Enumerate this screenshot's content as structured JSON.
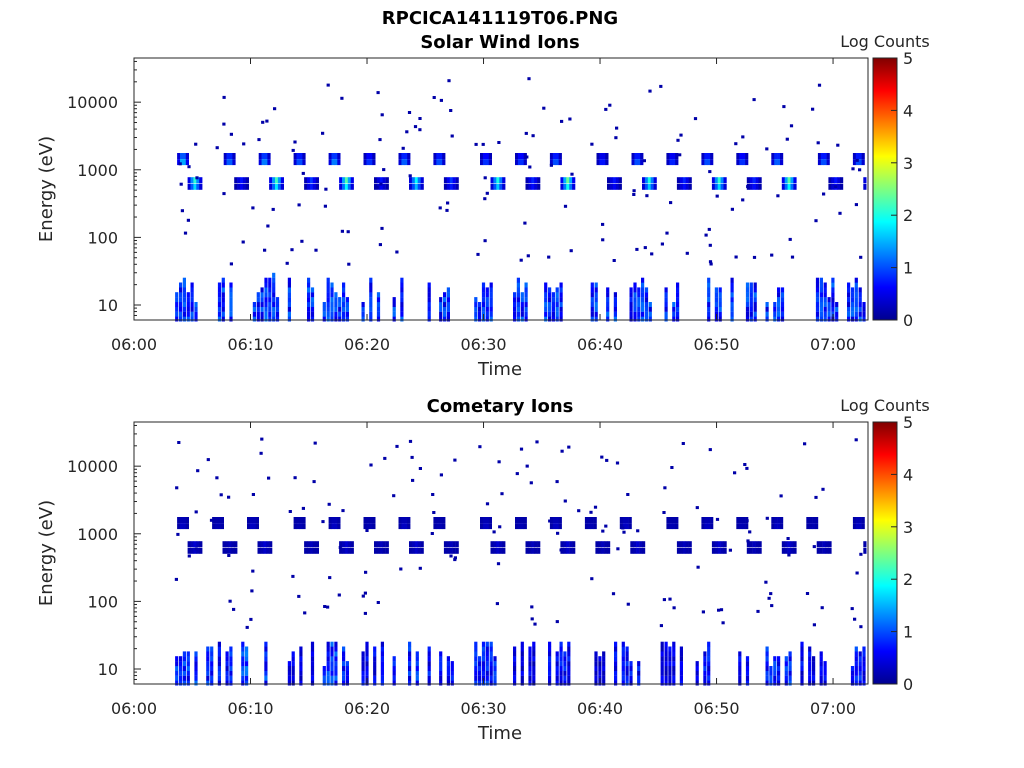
{
  "figure_title": "RPCICA141119T06.PNG",
  "colormap": "jet",
  "chart_data": [
    {
      "type": "heatmap",
      "title": "Solar Wind Ions",
      "xlabel": "Time",
      "ylabel": "Energy (eV)",
      "x_range": [
        "06:00",
        "07:03"
      ],
      "x_ticks": [
        "06:00",
        "06:10",
        "06:20",
        "06:30",
        "06:40",
        "06:50",
        "07:00"
      ],
      "y_scale": "log",
      "y_range": [
        6,
        45000
      ],
      "y_ticks": [
        "10",
        "100",
        "1000",
        "10000"
      ],
      "colorbar": {
        "label": "Log Counts",
        "min": 0,
        "max": 5,
        "ticks": [
          "0",
          "1",
          "2",
          "3",
          "4",
          "5"
        ]
      },
      "bursts": [
        {
          "t": "06:04",
          "peak_1000": 1.8,
          "peak_600": 2.0,
          "low_energy": 1
        },
        {
          "t": "06:08",
          "peak_1000": 1.3,
          "peak_600": 0.6,
          "low_energy": 1
        },
        {
          "t": "06:11",
          "peak_1000": 1.5,
          "peak_600": 2.1,
          "low_energy": 1
        },
        {
          "t": "06:14",
          "peak_1000": 1.2,
          "peak_600": 0.8,
          "low_energy": 1
        },
        {
          "t": "06:17",
          "peak_1000": 1.5,
          "peak_600": 2.2,
          "low_energy": 1
        },
        {
          "t": "06:20",
          "peak_1000": 1.0,
          "peak_600": 0.6,
          "low_energy": 1
        },
        {
          "t": "06:23",
          "peak_1000": 1.3,
          "peak_600": 1.8,
          "low_energy": 1
        },
        {
          "t": "06:26",
          "peak_1000": 1.2,
          "peak_600": 0.8,
          "low_energy": 1
        },
        {
          "t": "06:30",
          "peak_1000": 1.0,
          "peak_600": 1.9,
          "low_energy": 1
        },
        {
          "t": "06:33",
          "peak_1000": 1.0,
          "peak_600": 0.7,
          "low_energy": 1
        },
        {
          "t": "06:36",
          "peak_1000": 1.2,
          "peak_600": 2.3,
          "low_energy": 1
        },
        {
          "t": "06:40",
          "peak_1000": 0.8,
          "peak_600": 0.6,
          "low_energy": 1
        },
        {
          "t": "06:43",
          "peak_1000": 1.2,
          "peak_600": 1.9,
          "low_energy": 1
        },
        {
          "t": "06:46",
          "peak_1000": 0.9,
          "peak_600": 0.7,
          "low_energy": 1
        },
        {
          "t": "06:49",
          "peak_1000": 1.2,
          "peak_600": 2.0,
          "low_energy": 1
        },
        {
          "t": "06:52",
          "peak_1000": 1.0,
          "peak_600": 0.7,
          "low_energy": 1
        },
        {
          "t": "06:55",
          "peak_1000": 1.3,
          "peak_600": 2.2,
          "low_energy": 1
        },
        {
          "t": "06:59",
          "peak_1000": 1.2,
          "peak_600": 0.6,
          "low_energy": 1
        },
        {
          "t": "07:02",
          "peak_1000": 1.2,
          "peak_600": 1.8,
          "low_energy": 1
        }
      ]
    },
    {
      "type": "heatmap",
      "title": "Cometary Ions",
      "xlabel": "Time",
      "ylabel": "Energy (eV)",
      "x_range": [
        "06:00",
        "07:03"
      ],
      "x_ticks": [
        "06:00",
        "06:10",
        "06:20",
        "06:30",
        "06:40",
        "06:50",
        "07:00"
      ],
      "y_scale": "log",
      "y_range": [
        6,
        45000
      ],
      "y_ticks": [
        "10",
        "100",
        "1000",
        "10000"
      ],
      "colorbar": {
        "label": "Log Counts",
        "min": 0,
        "max": 5,
        "ticks": [
          "0",
          "1",
          "2",
          "3",
          "4",
          "5"
        ]
      },
      "bursts": [
        {
          "t": "06:04",
          "peak_1000": 0.3,
          "peak_600": 0.3,
          "low_energy": 1.0
        },
        {
          "t": "06:07",
          "peak_1000": 0.2,
          "peak_600": 0.2,
          "low_energy": 0.9
        },
        {
          "t": "06:10",
          "peak_1000": 0.3,
          "peak_600": 0.3,
          "low_energy": 1.1
        },
        {
          "t": "06:14",
          "peak_1000": 0.2,
          "peak_600": 0.2,
          "low_energy": 0.6
        },
        {
          "t": "06:17",
          "peak_1000": 0.3,
          "peak_600": 0.3,
          "low_energy": 1.0
        },
        {
          "t": "06:20",
          "peak_1000": 0.2,
          "peak_600": 0.2,
          "low_energy": 0.7
        },
        {
          "t": "06:23",
          "peak_1000": 0.3,
          "peak_600": 0.3,
          "low_energy": 1.0
        },
        {
          "t": "06:26",
          "peak_1000": 0.2,
          "peak_600": 0.2,
          "low_energy": 0.8
        },
        {
          "t": "06:30",
          "peak_1000": 0.3,
          "peak_600": 0.3,
          "low_energy": 0.9
        },
        {
          "t": "06:33",
          "peak_1000": 0.2,
          "peak_600": 0.2,
          "low_energy": 0.6
        },
        {
          "t": "06:36",
          "peak_1000": 0.3,
          "peak_600": 0.3,
          "low_energy": 0.8
        },
        {
          "t": "06:39",
          "peak_1000": 0.2,
          "peak_600": 0.2,
          "low_energy": 0.5
        },
        {
          "t": "06:42",
          "peak_1000": 0.3,
          "peak_600": 0.3,
          "low_energy": 0.8
        },
        {
          "t": "06:46",
          "peak_1000": 0.2,
          "peak_600": 0.2,
          "low_energy": 0.6
        },
        {
          "t": "06:49",
          "peak_1000": 0.3,
          "peak_600": 0.3,
          "low_energy": 0.8
        },
        {
          "t": "06:52",
          "peak_1000": 0.2,
          "peak_600": 0.2,
          "low_energy": 0.7
        },
        {
          "t": "06:55",
          "peak_1000": 0.3,
          "peak_600": 0.3,
          "low_energy": 0.9
        },
        {
          "t": "06:58",
          "peak_1000": 0.2,
          "peak_600": 0.2,
          "low_energy": 0.7
        },
        {
          "t": "07:02",
          "peak_1000": 0.3,
          "peak_600": 0.3,
          "low_energy": 0.9
        }
      ]
    }
  ]
}
